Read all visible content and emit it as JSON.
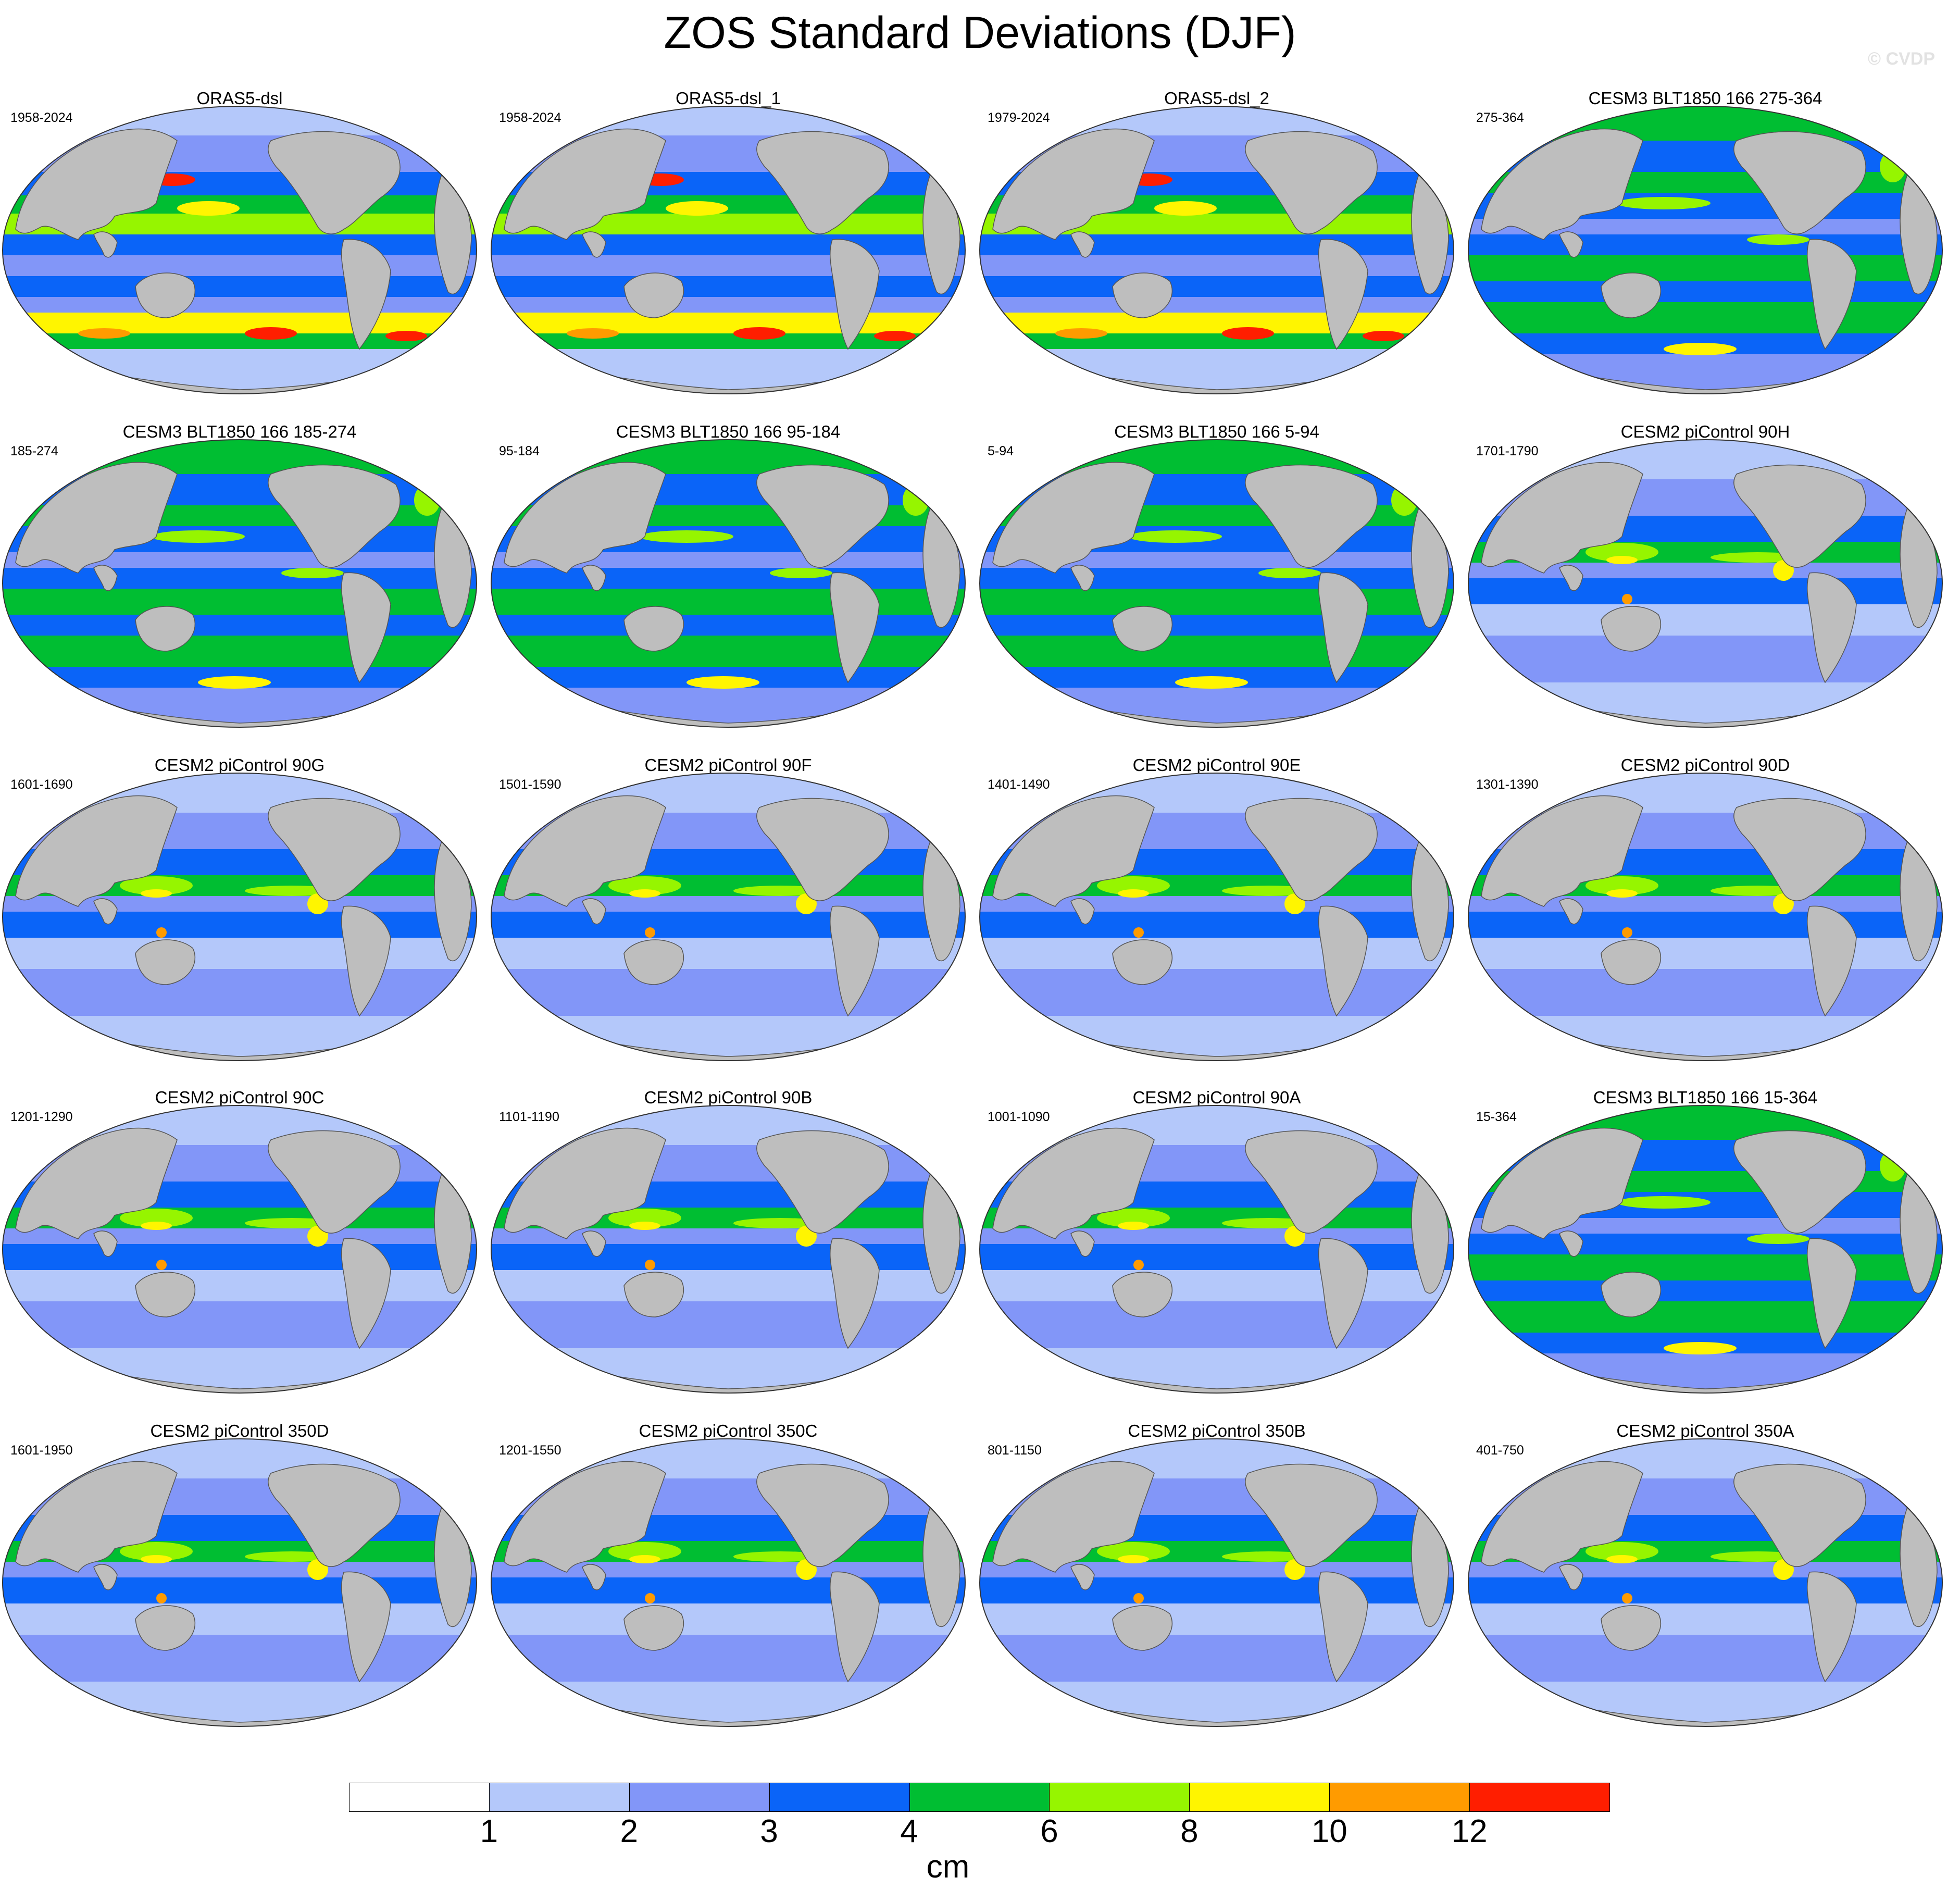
{
  "title": "ZOS Standard Deviations (DJF)",
  "watermark": "© CVDP",
  "panels": [
    {
      "title": "ORAS5-dsl",
      "period": "1958-2024",
      "pattern": "obs"
    },
    {
      "title": "ORAS5-dsl_1",
      "period": "1958-2024",
      "pattern": "obs"
    },
    {
      "title": "ORAS5-dsl_2",
      "period": "1979-2024",
      "pattern": "obs"
    },
    {
      "title": "CESM3 BLT1850 166 275-364",
      "period": "275-364",
      "pattern": "cesm3"
    },
    {
      "title": "CESM3 BLT1850 166 185-274",
      "period": "185-274",
      "pattern": "cesm3"
    },
    {
      "title": "CESM3 BLT1850 166 95-184",
      "period": "95-184",
      "pattern": "cesm3"
    },
    {
      "title": "CESM3 BLT1850 166 5-94",
      "period": "5-94",
      "pattern": "cesm3"
    },
    {
      "title": "CESM2 piControl 90H",
      "period": "1701-1790",
      "pattern": "cesm2"
    },
    {
      "title": "CESM2 piControl 90G",
      "period": "1601-1690",
      "pattern": "cesm2"
    },
    {
      "title": "CESM2 piControl 90F",
      "period": "1501-1590",
      "pattern": "cesm2"
    },
    {
      "title": "CESM2 piControl 90E",
      "period": "1401-1490",
      "pattern": "cesm2"
    },
    {
      "title": "CESM2 piControl 90D",
      "period": "1301-1390",
      "pattern": "cesm2"
    },
    {
      "title": "CESM2 piControl 90C",
      "period": "1201-1290",
      "pattern": "cesm2"
    },
    {
      "title": "CESM2 piControl 90B",
      "period": "1101-1190",
      "pattern": "cesm2"
    },
    {
      "title": "CESM2 piControl 90A",
      "period": "1001-1090",
      "pattern": "cesm2"
    },
    {
      "title": "CESM3 BLT1850 166 15-364",
      "period": "15-364",
      "pattern": "cesm3"
    },
    {
      "title": "CESM2 piControl 350D",
      "period": "1601-1950",
      "pattern": "cesm2"
    },
    {
      "title": "CESM2 piControl 350C",
      "period": "1201-1550",
      "pattern": "cesm2"
    },
    {
      "title": "CESM2 piControl 350B",
      "period": "801-1150",
      "pattern": "cesm2"
    },
    {
      "title": "CESM2 piControl 350A",
      "period": "401-750",
      "pattern": "cesm2"
    }
  ],
  "colorbar": {
    "colors": [
      "#ffffff",
      "#b4c8fa",
      "#8296f8",
      "#0a64f8",
      "#00be32",
      "#96f500",
      "#fff500",
      "#ff9b00",
      "#ff1e00"
    ],
    "ticks": [
      "1",
      "2",
      "3",
      "4",
      "6",
      "8",
      "10",
      "12"
    ],
    "units": "cm"
  },
  "map_colors": {
    "land": "#bebebe",
    "coast": "#555555"
  }
}
